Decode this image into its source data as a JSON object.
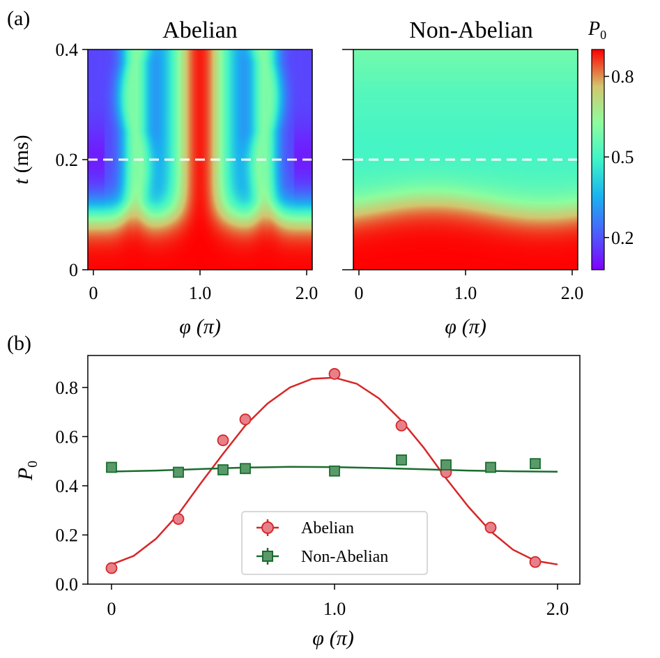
{
  "figure": {
    "panel_a_label": "(a)",
    "panel_b_label": "(b)"
  },
  "colors": {
    "abelian": "#d62728",
    "abelian_fill": "#e8808a",
    "non_abelian": "#1a6b2e",
    "non_abelian_fill": "#5a9a6a",
    "dashed_line": "#ffffff"
  },
  "chart_data": [
    {
      "type": "heatmap",
      "title": "Abelian",
      "xlabel_symbol": "φ",
      "xlabel_unit": "(π)",
      "ylabel_symbol": "t",
      "ylabel_unit": "(ms)",
      "xlim": [
        0,
        2.0
      ],
      "ylim": [
        0,
        0.4
      ],
      "x_ticks": [
        0,
        1.0,
        2.0
      ],
      "x_tick_labels": [
        "0",
        "1.0",
        "2.0"
      ],
      "y_ticks": [
        0,
        0.2,
        0.4
      ],
      "y_tick_labels": [
        "0",
        "0.2",
        "0.4"
      ],
      "dashed_line_t": 0.2,
      "colormap": "rainbow"
    },
    {
      "type": "heatmap",
      "title": "Non-Abelian",
      "xlabel_symbol": "φ",
      "xlabel_unit": "(π)",
      "xlim": [
        0,
        2.0
      ],
      "ylim": [
        0,
        0.4
      ],
      "x_ticks": [
        0,
        1.0,
        2.0
      ],
      "x_tick_labels": [
        "0",
        "1.0",
        "2.0"
      ],
      "dashed_line_t": 0.2,
      "colormap": "rainbow",
      "colorbar": {
        "label": "P",
        "label_sub": "0",
        "ticks": [
          0.2,
          0.5,
          0.8
        ],
        "tick_labels": [
          "0.2",
          "0.5",
          "0.8"
        ],
        "range": [
          0.08,
          0.9
        ]
      }
    },
    {
      "type": "scatter",
      "xlabel_symbol": "φ",
      "xlabel_unit": "(π)",
      "ylabel": "P",
      "ylabel_sub": "0",
      "xlim": [
        -0.1,
        2.1
      ],
      "ylim": [
        0,
        0.93
      ],
      "x_ticks": [
        0,
        1.0,
        2.0
      ],
      "x_tick_labels": [
        "0",
        "1.0",
        "2.0"
      ],
      "y_ticks": [
        0.0,
        0.2,
        0.4,
        0.6,
        0.8
      ],
      "y_tick_labels": [
        "0.0",
        "0.2",
        "0.4",
        "0.6",
        "0.8"
      ],
      "legend_position": "lower-center",
      "series": [
        {
          "name": "Abelian",
          "marker": "circle",
          "points": {
            "x": [
              0,
              0.3,
              0.5,
              0.6,
              1.0,
              1.3,
              1.5,
              1.7,
              1.9
            ],
            "y": [
              0.065,
              0.265,
              0.585,
              0.67,
              0.855,
              0.645,
              0.455,
              0.23,
              0.09
            ]
          },
          "fit": {
            "x": [
              0,
              0.1,
              0.2,
              0.3,
              0.4,
              0.5,
              0.6,
              0.7,
              0.8,
              0.9,
              1.0,
              1.1,
              1.2,
              1.3,
              1.4,
              1.5,
              1.6,
              1.7,
              1.8,
              1.9,
              2.0
            ],
            "y": [
              0.08,
              0.115,
              0.185,
              0.285,
              0.41,
              0.53,
              0.645,
              0.735,
              0.8,
              0.835,
              0.84,
              0.815,
              0.755,
              0.665,
              0.555,
              0.43,
              0.315,
              0.215,
              0.14,
              0.095,
              0.08
            ]
          }
        },
        {
          "name": "Non-Abelian",
          "marker": "square",
          "points": {
            "x": [
              0,
              0.3,
              0.5,
              0.6,
              1.0,
              1.3,
              1.5,
              1.7,
              1.9
            ],
            "y": [
              0.475,
              0.455,
              0.465,
              0.47,
              0.46,
              0.505,
              0.485,
              0.475,
              0.49
            ]
          },
          "fit": {
            "x": [
              0,
              0.2,
              0.4,
              0.6,
              0.8,
              1.0,
              1.2,
              1.4,
              1.6,
              1.8,
              2.0
            ],
            "y": [
              0.458,
              0.462,
              0.468,
              0.474,
              0.477,
              0.476,
              0.472,
              0.467,
              0.462,
              0.459,
              0.457
            ]
          }
        }
      ]
    }
  ]
}
